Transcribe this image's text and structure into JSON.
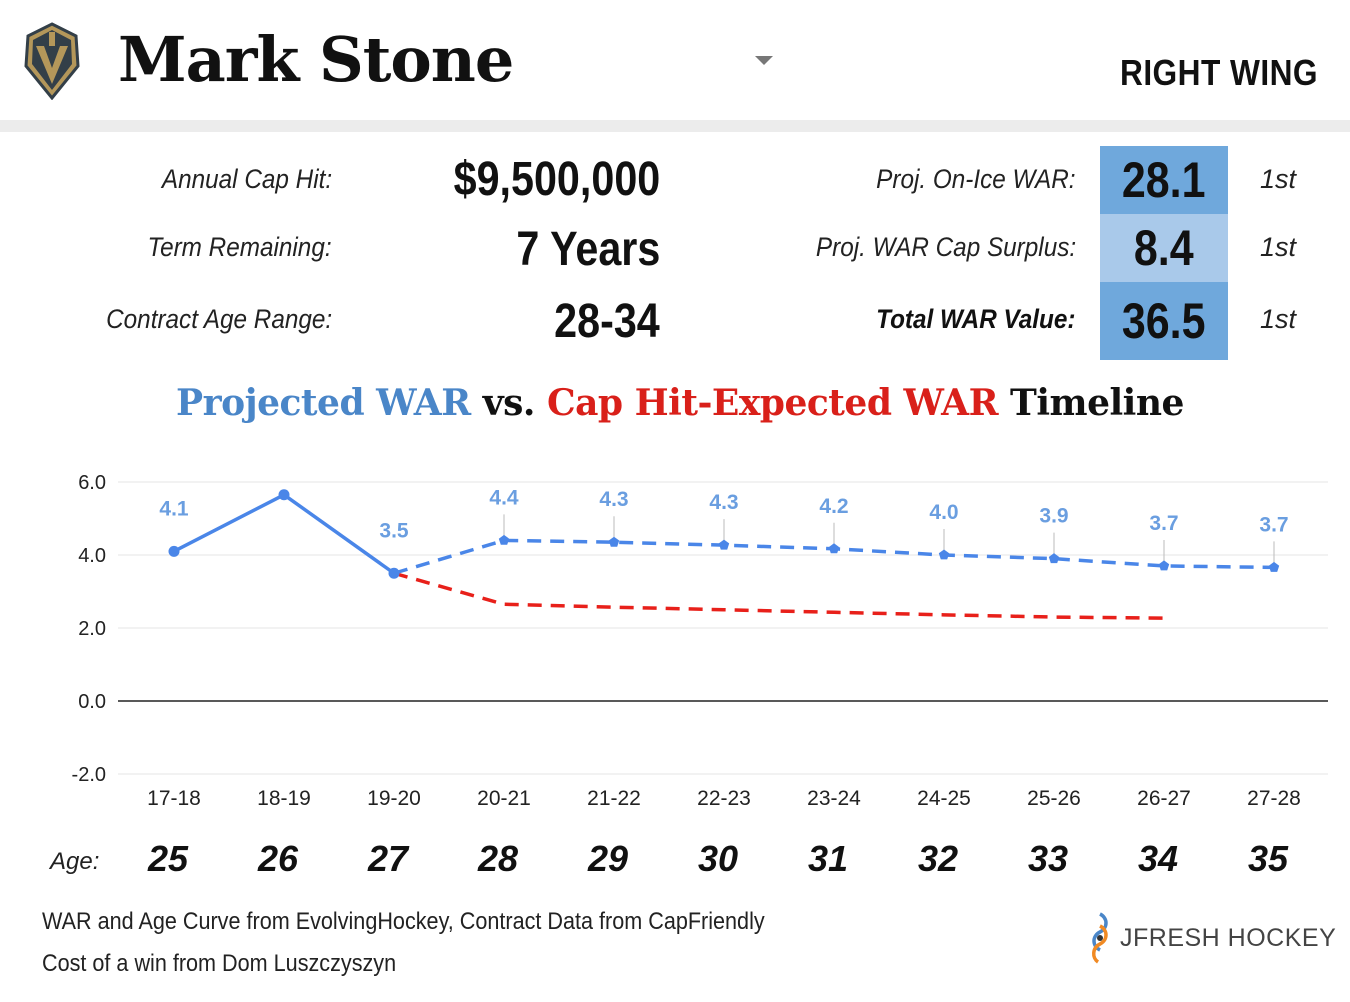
{
  "header": {
    "player_name": "Mark Stone",
    "position": "RIGHT WING",
    "logo_icon": "golden-knights-helmet-logo-icon",
    "dropdown_icon": "caret-down-icon"
  },
  "contract": {
    "cap_hit_label": "Annual Cap Hit:",
    "cap_hit_value": "$9,500,000",
    "term_label": "Term Remaining:",
    "term_value": "7 Years",
    "age_range_label": "Contract Age Range:",
    "age_range_value": "28-34"
  },
  "war": {
    "onice_label": "Proj. On-Ice WAR:",
    "onice_value": "28.1",
    "onice_rank": "1st",
    "surplus_label": "Proj. WAR Cap Surplus:",
    "surplus_value": "8.4",
    "surplus_rank": "1st",
    "total_label": "Total WAR Value:",
    "total_value": "36.5",
    "total_rank": "1st",
    "box_colors": [
      "#6fa8dc",
      "#a9c9ea",
      "#6fa8dc"
    ]
  },
  "chart_title": {
    "part1": "Projected WAR",
    "part2": " vs. ",
    "part3": "Cap Hit-Expected WAR",
    "part4": " Timeline"
  },
  "chart_data": {
    "type": "line",
    "title": "Projected WAR vs. Cap Hit-Expected WAR Timeline",
    "categories": [
      "17-18",
      "18-19",
      "19-20",
      "20-21",
      "21-22",
      "22-23",
      "23-24",
      "24-25",
      "25-26",
      "26-27",
      "27-28"
    ],
    "ylim": [
      -2,
      6
    ],
    "yticks": [
      6,
      4,
      2,
      0,
      -2
    ],
    "ytick_labels": [
      "6.0",
      "4.0",
      "2.0",
      "0.0",
      "-2.0"
    ],
    "grid": true,
    "series": [
      {
        "name": "Projected WAR",
        "color": "#4a86e8",
        "values": [
          4.1,
          5.65,
          3.5,
          4.4,
          4.35,
          4.27,
          4.17,
          4.0,
          3.9,
          3.7,
          3.66
        ],
        "labels": [
          "4.1",
          "",
          "3.5",
          "4.4",
          "4.3",
          "4.3",
          "4.2",
          "4.0",
          "3.9",
          "3.7",
          "3.7"
        ],
        "solid_until_index": 2
      },
      {
        "name": "Cap Hit-Expected WAR",
        "color": "#e8201a",
        "start_index": 2,
        "values": [
          null,
          null,
          3.5,
          2.65,
          2.57,
          2.5,
          2.43,
          2.36,
          2.3,
          2.27,
          null
        ]
      }
    ]
  },
  "ages": {
    "label": "Age:",
    "values": [
      "25",
      "26",
      "27",
      "28",
      "29",
      "30",
      "31",
      "32",
      "33",
      "34",
      "35"
    ]
  },
  "footer": {
    "source_line1": "WAR and Age Curve from EvolvingHockey, Contract Data from CapFriendly",
    "source_line2": "Cost of a win from Dom Luszczyszyn",
    "brand": "JFRESH HOCKEY",
    "brand_icon": "jfresh-hockey-logo-icon"
  }
}
